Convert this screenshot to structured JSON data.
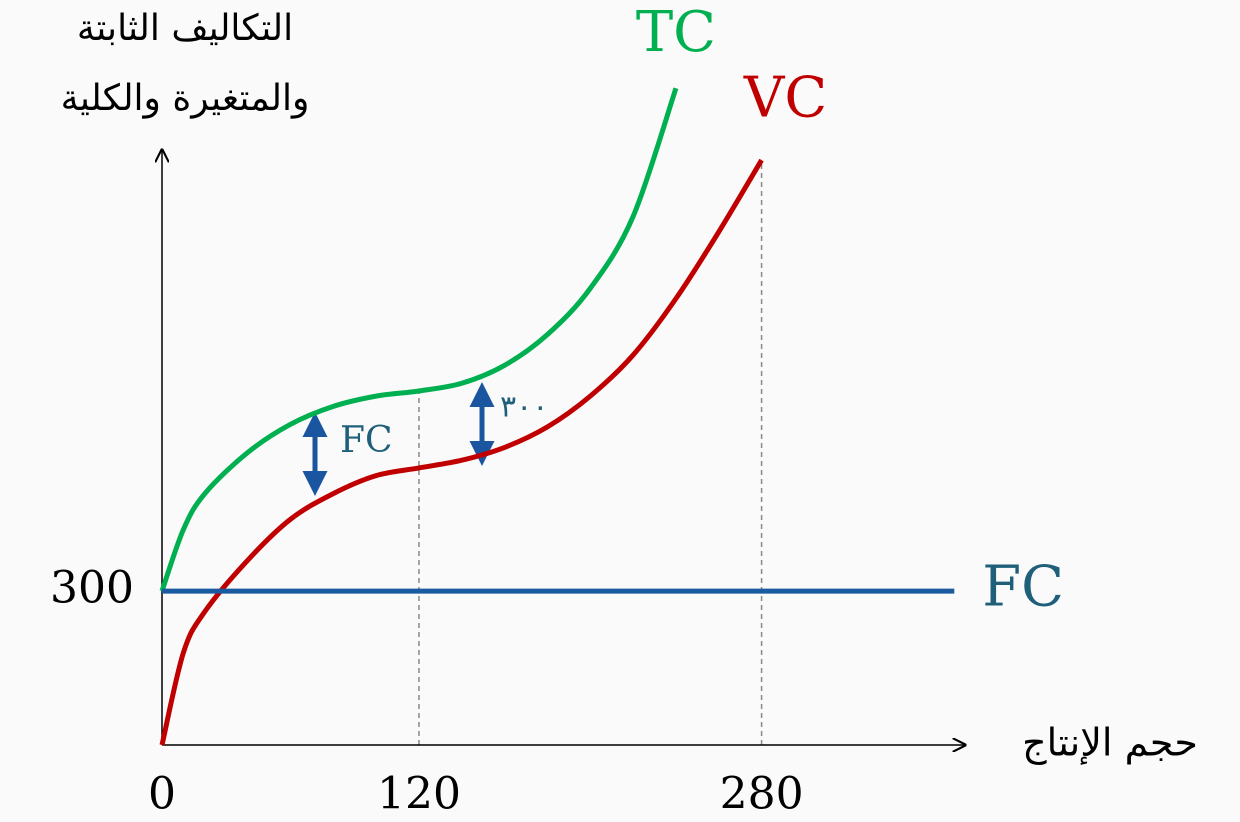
{
  "chart_data": {
    "type": "line",
    "ylabel": [
      "التكاليف الثابتة",
      "والمتغيرة والكلية"
    ],
    "xlabel": "حجم الإنتاج",
    "x": [
      0,
      10,
      20,
      40,
      60,
      80,
      100,
      120,
      140,
      160,
      180,
      200,
      220,
      240,
      260,
      280
    ],
    "series": [
      {
        "name": "TC",
        "color": "#00b050",
        "values": [
          300,
          420,
          490,
          570,
          625,
          660,
          680,
          690,
          705,
          740,
          800,
          890,
          1030,
          1280,
          null,
          null
        ]
      },
      {
        "name": "VC",
        "color": "#c00000",
        "values": [
          0,
          180,
          260,
          360,
          440,
          490,
          525,
          540,
          555,
          580,
          620,
          680,
          760,
          870,
          1000,
          1140
        ]
      },
      {
        "name": "FC",
        "color": "#1a5aa0",
        "x": [
          0,
          370
        ],
        "values": [
          300,
          300
        ]
      }
    ],
    "xlim": [
      0,
      375
    ],
    "ylim": [
      0,
      1300
    ],
    "xticks": [
      0,
      120,
      280
    ],
    "yticks": [
      300
    ],
    "annotations": [
      "FC",
      "٣٠٠"
    ]
  }
}
